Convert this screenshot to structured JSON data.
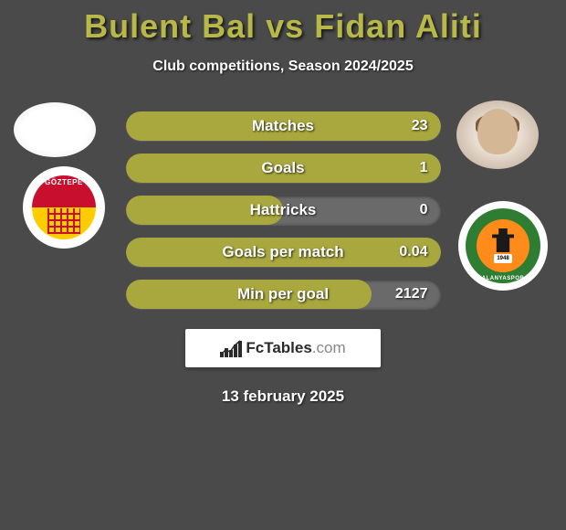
{
  "title": "Bulent Bal vs Fidan Aliti",
  "subtitle": "Club competitions, Season 2024/2025",
  "date": "13 february 2025",
  "brand": {
    "site": "FcTables",
    "tld": ".com"
  },
  "player_left": {
    "club_name": "GÖZTEPE"
  },
  "player_right": {
    "club_name": "ALANYASPOR",
    "club_year": "1948"
  },
  "colors": {
    "accent": "#b8b848",
    "bar_fill": "#a8a83e",
    "bar_bg": "#6a6a6a",
    "background": "#4a4a4a",
    "text": "#ffffff",
    "goztepe_red": "#c8102e",
    "goztepe_yellow": "#ffcc00",
    "alanya_green": "#2e7d32",
    "alanya_orange": "#ff8c1a"
  },
  "stats": [
    {
      "label": "Matches",
      "value": "23",
      "fill_pct": 100
    },
    {
      "label": "Goals",
      "value": "1",
      "fill_pct": 100
    },
    {
      "label": "Hattricks",
      "value": "0",
      "fill_pct": 50
    },
    {
      "label": "Goals per match",
      "value": "0.04",
      "fill_pct": 100
    },
    {
      "label": "Min per goal",
      "value": "2127",
      "fill_pct": 78
    }
  ]
}
